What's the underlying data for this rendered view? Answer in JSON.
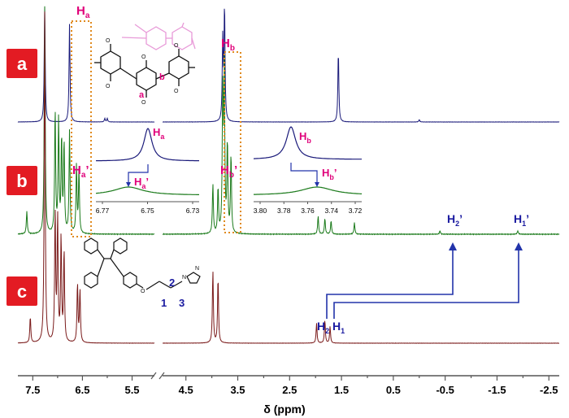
{
  "chart_data": {
    "type": "line",
    "title": "",
    "xlabel": "δ (ppm)",
    "ylabel": "",
    "x_axis": {
      "reversed": true,
      "broken": true,
      "segments": [
        {
          "from": 7.8,
          "to": 5.05,
          "ticks": [
            "7.5",
            "7.0",
            "6.5",
            "6.0",
            "5.5"
          ],
          "tick_values": [
            7.5,
            7.0,
            6.5,
            6.0,
            5.5
          ]
        },
        {
          "from": 4.95,
          "to": -2.7,
          "ticks": [
            "4.5",
            "4.0",
            "3.5",
            "3.0",
            "2.5",
            "2.0",
            "1.5",
            "1.0",
            "0.5",
            "0",
            "-0.5",
            "-1.0",
            "-1.5",
            "-2.0",
            "-2.5"
          ],
          "tick_values": [
            4.5,
            4.0,
            3.5,
            3.0,
            2.5,
            2.0,
            1.5,
            1.0,
            0.5,
            0,
            -0.5,
            -1.0,
            -1.5,
            -2.0,
            -2.5
          ]
        }
      ],
      "labeled_ticks": [
        "7.5",
        "6.5",
        "5.5",
        "4.5",
        "3.5",
        "2.5",
        "1.5",
        "0.5",
        "-0.5",
        "-1.5",
        "-2.5"
      ]
    },
    "series": [
      {
        "panel": "a",
        "color": "#1a1a7a",
        "peaks": [
          {
            "x": 7.26,
            "h": 1.0
          },
          {
            "x": 6.76,
            "h": 0.85
          },
          {
            "x": 6.05,
            "h": 0.03
          },
          {
            "x": 6.0,
            "h": 0.03
          },
          {
            "x": 3.79,
            "h": 0.7
          },
          {
            "x": 3.755,
            "h": 1.0
          },
          {
            "x": 1.56,
            "h": 0.62
          },
          {
            "x": 0.0,
            "h": 0.02
          }
        ]
      },
      {
        "panel": "b",
        "color": "#1a7a1a",
        "peaks": [
          {
            "x": 7.26,
            "h": 1.0
          },
          {
            "x": 7.62,
            "h": 0.1
          },
          {
            "x": 7.05,
            "h": 0.55
          },
          {
            "x": 6.98,
            "h": 0.5
          },
          {
            "x": 6.92,
            "h": 0.42
          },
          {
            "x": 6.87,
            "h": 0.4
          },
          {
            "x": 6.76,
            "h": 0.45
          },
          {
            "x": 6.62,
            "h": 0.3
          },
          {
            "x": 6.57,
            "h": 0.28
          },
          {
            "x": 3.98,
            "h": 0.22
          },
          {
            "x": 3.88,
            "h": 0.2
          },
          {
            "x": 3.79,
            "h": 0.6
          },
          {
            "x": 3.76,
            "h": 0.72
          },
          {
            "x": 3.7,
            "h": 0.4
          },
          {
            "x": 3.63,
            "h": 0.35
          },
          {
            "x": 1.95,
            "h": 0.08
          },
          {
            "x": 1.82,
            "h": 0.07
          },
          {
            "x": 1.7,
            "h": 0.06
          },
          {
            "x": 1.25,
            "h": 0.05
          },
          {
            "x": -0.4,
            "h": 0.015
          },
          {
            "x": -1.9,
            "h": 0.015
          }
        ]
      },
      {
        "panel": "c",
        "color": "#7a1a1a",
        "peaks": [
          {
            "x": 7.26,
            "h": 1.0
          },
          {
            "x": 7.55,
            "h": 0.08
          },
          {
            "x": 7.05,
            "h": 0.4
          },
          {
            "x": 7.0,
            "h": 0.38
          },
          {
            "x": 6.93,
            "h": 0.32
          },
          {
            "x": 6.87,
            "h": 0.28
          },
          {
            "x": 6.6,
            "h": 0.18
          },
          {
            "x": 6.55,
            "h": 0.16
          },
          {
            "x": 3.98,
            "h": 0.22
          },
          {
            "x": 3.88,
            "h": 0.2
          },
          {
            "x": 1.98,
            "h": 0.06
          },
          {
            "x": 1.82,
            "h": 0.07
          },
          {
            "x": 1.72,
            "h": 0.05
          }
        ]
      }
    ],
    "panels": [
      "a",
      "b",
      "c"
    ],
    "annotations": {
      "Ha": "H",
      "Ha_sub": "a",
      "Hb": "H",
      "Hb_sub": "b",
      "Ha2": "H",
      "Ha2_sub": "a",
      "Ha2_prime": "’",
      "Hb2": "H",
      "Hb2_sub": "b",
      "Hb2_prime": "’",
      "H2p": "H",
      "H2p_sub": "2",
      "H2p_prime": "’",
      "H1p": "H",
      "H1p_sub": "1",
      "H1p_prime": "’",
      "H2": "H",
      "H2_sub": "2",
      "H1": "H",
      "H1_sub": "1",
      "struct_a": "a",
      "struct_b": "b",
      "chain_1": "1",
      "chain_2": "2",
      "chain_3": "3"
    },
    "inset_left": {
      "ticks": [
        "6.77",
        "6.75",
        "6.73"
      ],
      "label_top": "H",
      "label_top_sub": "a",
      "label_bot": "H",
      "label_bot_sub": "a",
      "label_bot_prime": "’"
    },
    "inset_right": {
      "ticks": [
        "3.80",
        "3.78",
        "3.76",
        "3.74",
        "3.72"
      ],
      "label_top": "H",
      "label_top_sub": "b",
      "label_bot": "H",
      "label_bot_sub": "b",
      "label_bot_prime": "’"
    },
    "grid": false,
    "legend": "none"
  },
  "colors": {
    "a": "#1a1a7a",
    "b": "#1a7a1a",
    "c": "#7a1a1a",
    "panel_bg": "#e31b23",
    "label_pink": "#e0007a",
    "label_blue": "#1a1aa0",
    "box_orange": "#e08a1e",
    "arrow_blue": "#2233aa",
    "pink_structure": "#e89ad8"
  }
}
